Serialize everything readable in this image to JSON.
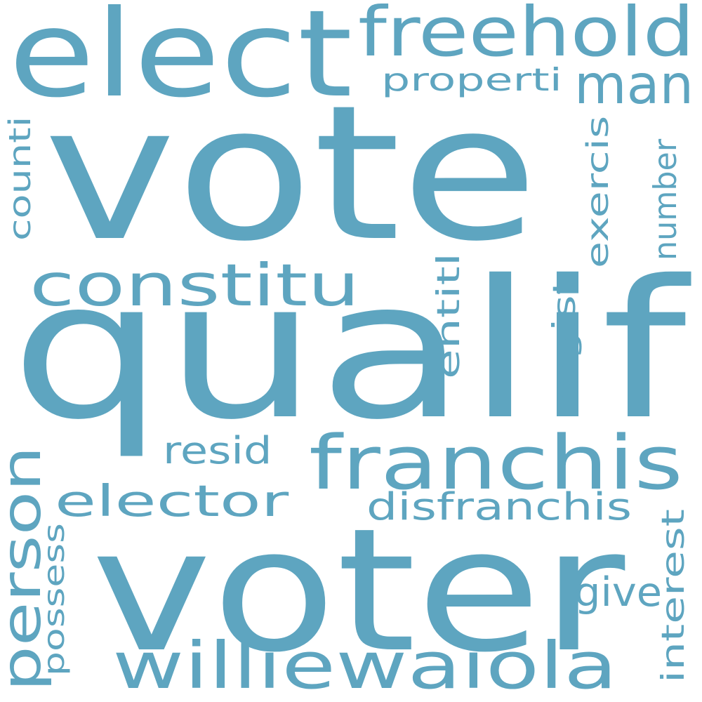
{
  "word_color": "#5ea5c0",
  "background": "#ffffff",
  "words": [
    {
      "text": "vote",
      "orientation": "horizontal"
    },
    {
      "text": "qualif",
      "orientation": "horizontal"
    },
    {
      "text": "voter",
      "orientation": "horizontal"
    },
    {
      "text": "elect",
      "orientation": "horizontal"
    },
    {
      "text": "freehold",
      "orientation": "horizontal"
    },
    {
      "text": "constitu",
      "orientation": "horizontal"
    },
    {
      "text": "franchis",
      "orientation": "horizontal"
    },
    {
      "text": "williewaiola",
      "orientation": "horizontal"
    },
    {
      "text": "man",
      "orientation": "horizontal"
    },
    {
      "text": "person",
      "orientation": "vertical"
    },
    {
      "text": "elector",
      "orientation": "horizontal"
    },
    {
      "text": "disfranchis",
      "orientation": "horizontal"
    },
    {
      "text": "properti",
      "orientation": "horizontal"
    },
    {
      "text": "counti",
      "orientation": "vertical"
    },
    {
      "text": "exercis",
      "orientation": "vertical"
    },
    {
      "text": "number",
      "orientation": "vertical"
    },
    {
      "text": "entitl",
      "orientation": "vertical"
    },
    {
      "text": "regist",
      "orientation": "vertical"
    },
    {
      "text": "resid",
      "orientation": "horizontal"
    },
    {
      "text": "possess",
      "orientation": "vertical"
    },
    {
      "text": "interest",
      "orientation": "vertical"
    },
    {
      "text": "give",
      "orientation": "horizontal"
    }
  ]
}
